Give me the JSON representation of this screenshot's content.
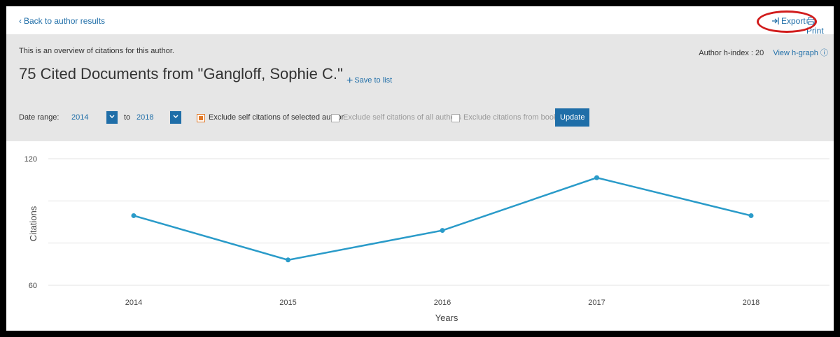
{
  "nav": {
    "back_label": "Back to author results",
    "export_label": "Export",
    "print_label": "Print"
  },
  "header": {
    "overview_text": "This is an overview of citations for this author.",
    "hindex_label": "Author h-index : 20",
    "hgraph_label": "View h-graph",
    "title": "75 Cited Documents from  \"Gangloff, Sophie C.\"",
    "save_label": "Save to list"
  },
  "filters": {
    "date_range_label": "Date range:",
    "from_year": "2014",
    "to_label": "to",
    "to_year": "2018",
    "exclude_self_selected": "Exclude self citations of selected author",
    "exclude_self_all": "Exclude self citations of all authors",
    "exclude_books": "Exclude citations from books",
    "update_label": "Update"
  },
  "colors": {
    "accent": "#1f6ea8",
    "line": "#2a9bc9",
    "checkbox_checked": "#e07a2a",
    "annotation": "#d11c1c"
  },
  "chart_data": {
    "type": "line",
    "xlabel": "Years",
    "ylabel": "Citations",
    "ylim": [
      60,
      120
    ],
    "yticks": [
      "60",
      "120"
    ],
    "categories": [
      "2014",
      "2015",
      "2016",
      "2017",
      "2018"
    ],
    "series": [
      {
        "values": [
          93,
          72,
          86,
          111,
          93
        ]
      }
    ],
    "grid": true
  }
}
